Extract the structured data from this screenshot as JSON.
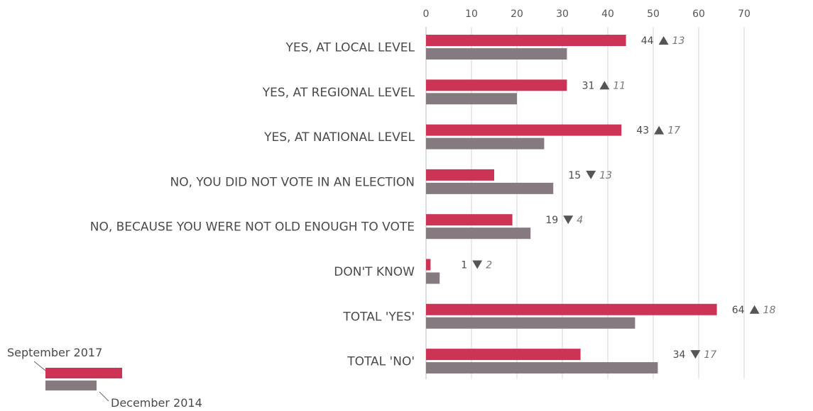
{
  "chart_data": {
    "type": "bar",
    "orientation": "horizontal",
    "categories": [
      "YES, AT LOCAL LEVEL",
      "YES, AT REGIONAL LEVEL",
      "YES, AT NATIONAL LEVEL",
      "NO, YOU DID NOT VOTE IN AN ELECTION",
      "NO, BECAUSE YOU WERE NOT OLD ENOUGH TO VOTE",
      "DON'T KNOW",
      "TOTAL 'YES'",
      "TOTAL 'NO'"
    ],
    "series": [
      {
        "name": "September 2017",
        "color": "#cc3355",
        "values": [
          44,
          31,
          43,
          15,
          19,
          1,
          64,
          34
        ]
      },
      {
        "name": "December 2014",
        "color": "#857a7f",
        "values": [
          31,
          20,
          26,
          28,
          23,
          3,
          46,
          51
        ]
      }
    ],
    "changes": [
      {
        "direction": "up",
        "value": "13"
      },
      {
        "direction": "up",
        "value": "11"
      },
      {
        "direction": "up",
        "value": "17"
      },
      {
        "direction": "down",
        "value": "13"
      },
      {
        "direction": "down",
        "value": "4"
      },
      {
        "direction": "down",
        "value": "2"
      },
      {
        "direction": "up",
        "value": "18"
      },
      {
        "direction": "down",
        "value": "17"
      }
    ],
    "xlim": [
      0,
      70
    ],
    "xticks": [
      0,
      10,
      20,
      30,
      40,
      50,
      60,
      70
    ],
    "grid": true,
    "legend_position": "bottom-left"
  }
}
